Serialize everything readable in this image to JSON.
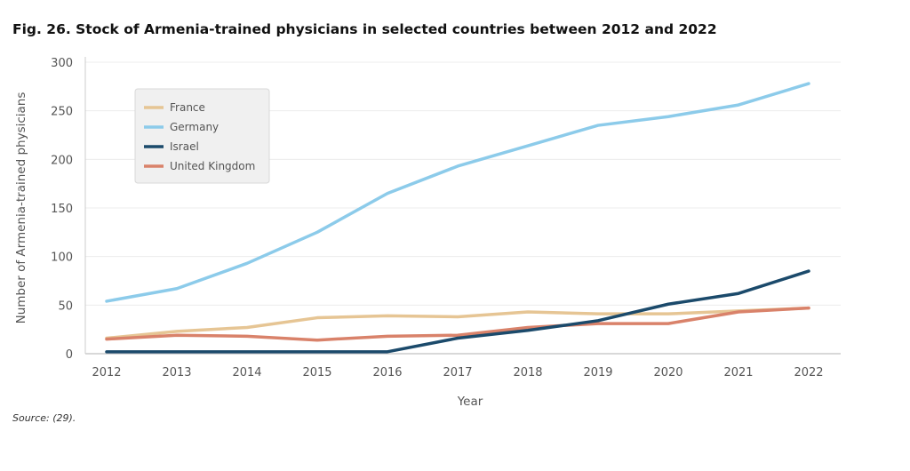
{
  "title": "Fig. 26. Stock of Armenia-trained physicians in selected countries between 2012 and 2022",
  "source": "Source: (29).",
  "chart_data": {
    "type": "line",
    "title": "Fig. 26. Stock of Armenia-trained physicians in selected countries between 2012 and 2022",
    "xlabel": "Year",
    "ylabel": "Number of Armenia-trained physicians",
    "x": [
      2012,
      2013,
      2014,
      2015,
      2016,
      2017,
      2018,
      2019,
      2020,
      2021,
      2022
    ],
    "ylim": [
      0,
      300
    ],
    "yticks": [
      0,
      50,
      100,
      150,
      200,
      250,
      300
    ],
    "grid": "horizontal",
    "legend": "top-left",
    "series": [
      {
        "name": "France",
        "color": "#e6c594",
        "values": [
          16,
          23,
          27,
          37,
          39,
          38,
          43,
          41,
          41,
          44,
          47
        ]
      },
      {
        "name": "Germany",
        "color": "#8ccbea",
        "values": [
          54,
          67,
          93,
          125,
          165,
          193,
          214,
          235,
          244,
          256,
          278
        ]
      },
      {
        "name": "Israel",
        "color": "#1b4a6b",
        "values": [
          2,
          2,
          2,
          2,
          2,
          16,
          24,
          34,
          51,
          62,
          85
        ]
      },
      {
        "name": "United Kingdom",
        "color": "#d9826a",
        "values": [
          15,
          19,
          18,
          14,
          18,
          19,
          27,
          31,
          31,
          43,
          47
        ]
      }
    ]
  }
}
